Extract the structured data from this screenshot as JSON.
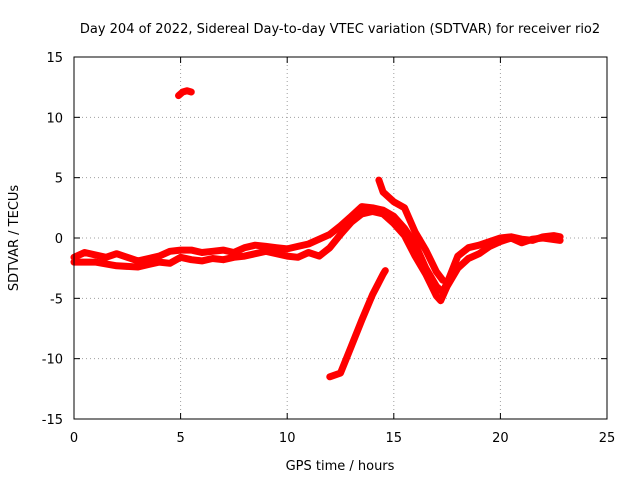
{
  "chart_data": {
    "type": "scatter",
    "title": "Day 204 of 2022, Sidereal Day-to-day VTEC variation (SDTVAR) for receiver rio2",
    "xlabel": "GPS time / hours",
    "ylabel": "SDTVAR / TECUs",
    "xlim": [
      0,
      25
    ],
    "ylim": [
      -15,
      15
    ],
    "grid": true,
    "x_ticks": [
      0,
      5,
      10,
      15,
      20,
      25
    ],
    "y_ticks": [
      -15,
      -10,
      -5,
      0,
      5,
      10,
      15
    ],
    "marker": "+",
    "color": "#ff0000",
    "series": [
      {
        "name": "track-upper-band",
        "points": [
          [
            0,
            -1.6
          ],
          [
            0.5,
            -1.2
          ],
          [
            1,
            -1.4
          ],
          [
            1.5,
            -1.6
          ],
          [
            2,
            -1.3
          ],
          [
            2.5,
            -1.6
          ],
          [
            3,
            -1.9
          ],
          [
            3.5,
            -1.7
          ],
          [
            4,
            -1.5
          ],
          [
            4.5,
            -1.1
          ],
          [
            5,
            -1.0
          ],
          [
            5.5,
            -1.0
          ],
          [
            6,
            -1.2
          ],
          [
            6.5,
            -1.1
          ],
          [
            7,
            -1.0
          ],
          [
            7.5,
            -1.2
          ],
          [
            8,
            -0.8
          ],
          [
            8.5,
            -0.6
          ],
          [
            9,
            -0.7
          ],
          [
            9.5,
            -0.8
          ],
          [
            10,
            -0.9
          ],
          [
            10.5,
            -0.7
          ],
          [
            11,
            -0.5
          ],
          [
            11.5,
            -0.1
          ],
          [
            12,
            0.3
          ],
          [
            12.5,
            1.0
          ],
          [
            13,
            1.8
          ],
          [
            13.5,
            2.6
          ],
          [
            14,
            2.5
          ],
          [
            14.5,
            2.3
          ],
          [
            15,
            1.8
          ],
          [
            15.5,
            0.8
          ],
          [
            16,
            -0.5
          ],
          [
            16.5,
            -2.5
          ],
          [
            17,
            -4.0
          ],
          [
            17.3,
            -4.5
          ],
          [
            17.6,
            -3.3
          ],
          [
            18,
            -1.5
          ],
          [
            18.5,
            -0.8
          ],
          [
            19,
            -0.6
          ],
          [
            19.5,
            -0.3
          ],
          [
            20,
            0.0
          ],
          [
            20.5,
            0.1
          ],
          [
            21,
            -0.1
          ],
          [
            21.5,
            -0.2
          ],
          [
            22,
            0.1
          ],
          [
            22.5,
            0.2
          ],
          [
            22.8,
            0.1
          ]
        ]
      },
      {
        "name": "track-lower-band",
        "points": [
          [
            0,
            -2.0
          ],
          [
            1,
            -2.0
          ],
          [
            2,
            -2.3
          ],
          [
            3,
            -2.4
          ],
          [
            3.5,
            -2.2
          ],
          [
            4,
            -2.0
          ],
          [
            4.5,
            -2.1
          ],
          [
            5,
            -1.6
          ],
          [
            5.5,
            -1.8
          ],
          [
            6,
            -1.9
          ],
          [
            6.5,
            -1.7
          ],
          [
            7,
            -1.8
          ],
          [
            7.5,
            -1.6
          ],
          [
            8,
            -1.5
          ],
          [
            8.5,
            -1.3
          ],
          [
            9,
            -1.1
          ],
          [
            9.5,
            -1.3
          ],
          [
            10,
            -1.5
          ],
          [
            10.5,
            -1.6
          ],
          [
            11,
            -1.2
          ],
          [
            11.5,
            -1.5
          ],
          [
            12,
            -0.8
          ],
          [
            12.5,
            0.3
          ],
          [
            13,
            1.3
          ],
          [
            13.5,
            2.0
          ],
          [
            14,
            2.2
          ],
          [
            14.5,
            2.0
          ],
          [
            15,
            1.2
          ],
          [
            15.5,
            0.2
          ],
          [
            16,
            -1.5
          ],
          [
            16.5,
            -3.0
          ],
          [
            17,
            -4.8
          ],
          [
            17.2,
            -5.2
          ],
          [
            17.5,
            -4.0
          ],
          [
            18,
            -2.5
          ],
          [
            18.5,
            -1.7
          ],
          [
            19,
            -1.3
          ],
          [
            19.5,
            -0.7
          ],
          [
            20,
            -0.3
          ],
          [
            20.5,
            0.0
          ],
          [
            21,
            -0.4
          ],
          [
            21.5,
            -0.1
          ],
          [
            22,
            0.0
          ],
          [
            22.8,
            -0.2
          ]
        ]
      },
      {
        "name": "track-hump",
        "points": [
          [
            14.3,
            4.8
          ],
          [
            14.5,
            3.8
          ],
          [
            15,
            3.0
          ],
          [
            15.5,
            2.5
          ],
          [
            16,
            0.5
          ],
          [
            16.5,
            -1.0
          ],
          [
            17,
            -2.8
          ],
          [
            17.3,
            -3.5
          ]
        ]
      },
      {
        "name": "track-rising",
        "points": [
          [
            12.0,
            -11.5
          ],
          [
            12.5,
            -11.2
          ],
          [
            13,
            -9.0
          ],
          [
            13.5,
            -6.8
          ],
          [
            14,
            -4.7
          ],
          [
            14.5,
            -3.0
          ],
          [
            14.6,
            -2.7
          ]
        ]
      },
      {
        "name": "track-isolated",
        "points": [
          [
            4.9,
            11.8
          ],
          [
            5.1,
            12.1
          ],
          [
            5.3,
            12.2
          ],
          [
            5.5,
            12.1
          ]
        ]
      }
    ]
  }
}
